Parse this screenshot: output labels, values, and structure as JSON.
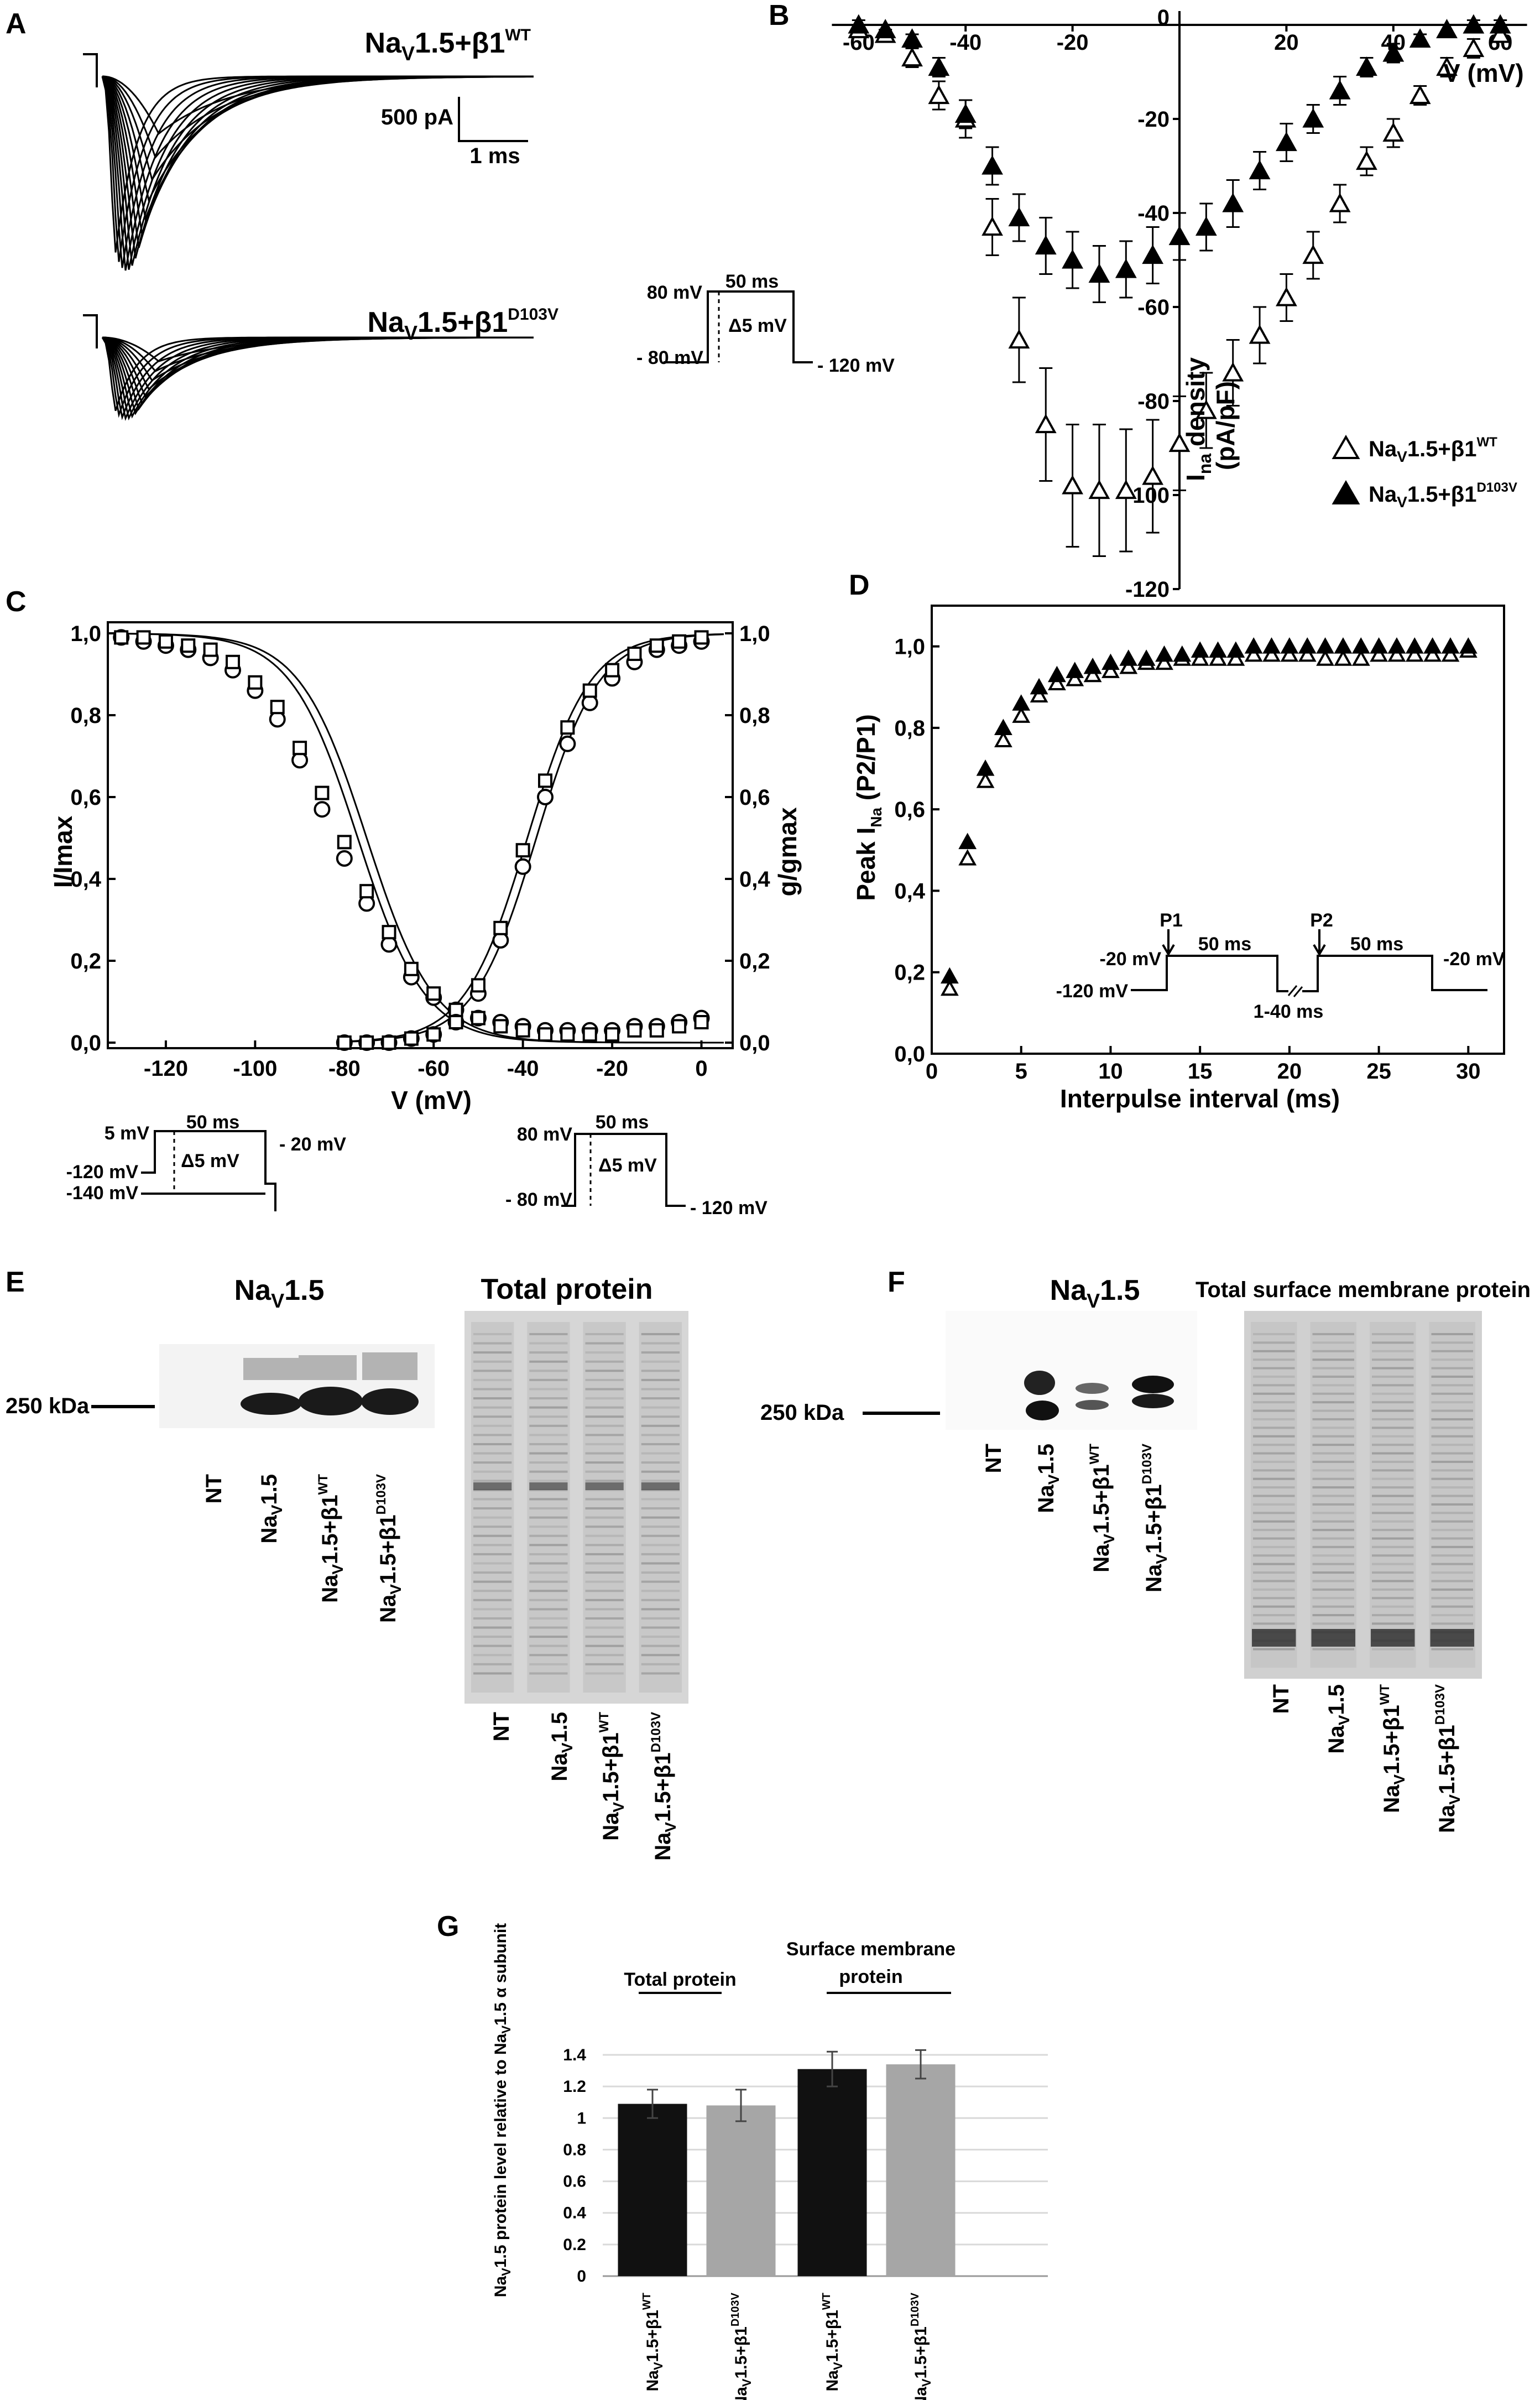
{
  "panels": {
    "A": {
      "label": "A",
      "trace_wt": {
        "base": "Na",
        "sub": "V",
        "mid": "1.5+β1",
        "sup": "WT"
      },
      "trace_mut": {
        "base": "Na",
        "sub": "V",
        "mid": "1.5+β1",
        "sup": "D103V"
      },
      "scale_current": "500 pA",
      "scale_time": "1 ms",
      "protocol": {
        "hold": "- 80 mV",
        "step": "80 mV",
        "end": "- 120 mV",
        "duration": "50 ms",
        "increment": "Δ5 mV"
      }
    },
    "B": {
      "label": "B"
    },
    "C": {
      "label": "C",
      "protocol_left": {
        "top": "5 mV",
        "v1": "-120 mV",
        "v2": "-140 mV",
        "right": "- 20 mV",
        "duration": "50 ms",
        "increment": "Δ5 mV"
      },
      "protocol_right": {
        "top": "80 mV",
        "hold": "- 80 mV",
        "end": "- 120 mV",
        "duration": "50 ms",
        "increment": "Δ5 mV"
      }
    },
    "D": {
      "label": "D",
      "protocol": {
        "p1": "P1",
        "p2": "P2",
        "v_left": "-20 mV",
        "hold": "-120 mV",
        "d1": "50 ms",
        "d2": "50 ms",
        "v_right": "-20 mV",
        "interval": "1-40 ms"
      }
    },
    "E": {
      "label": "E",
      "blot_title": {
        "base": "Na",
        "sub": "V",
        "rest": "1.5"
      },
      "total_title": "Total protein",
      "marker": "250 kDa",
      "lanes": [
        {
          "text": "NT"
        },
        {
          "base": "Na",
          "sub": "V",
          "rest": "1.5"
        },
        {
          "base": "Na",
          "sub": "V",
          "rest": "1.5+β1",
          "sup": "WT"
        },
        {
          "base": "Na",
          "sub": "V",
          "rest": "1.5+β1",
          "sup": "D103V"
        }
      ]
    },
    "F": {
      "label": "F",
      "blot_title": {
        "base": "Na",
        "sub": "V",
        "rest": "1.5"
      },
      "total_title": "Total surface membrane protein",
      "marker": "250 kDa"
    },
    "G": {
      "label": "G",
      "group1": "Total protein",
      "group2_line1": "Surface membrane",
      "group2_line2": "protein"
    }
  },
  "colors": {
    "wt_marker": "#ffffff",
    "mutant_marker": "#000000",
    "bar_dark": "#111111",
    "bar_light": "#a6a6a6"
  },
  "chart_data": [
    {
      "id": "B",
      "type": "scatter",
      "xlabel": "V (mV)",
      "ylabel": {
        "base": "I",
        "sub": "na",
        "rest": " density",
        "line2": "(pA/pF)"
      },
      "xlim": [
        -65,
        65
      ],
      "ylim": [
        -120,
        0
      ],
      "xticks": [
        -60,
        -40,
        -20,
        0,
        20,
        40,
        60
      ],
      "yticks": [
        0,
        -20,
        -40,
        -60,
        -80,
        -100,
        -120
      ],
      "legend_position": "bottom-right",
      "x": [
        -60,
        -55,
        -50,
        -45,
        -40,
        -35,
        -30,
        -25,
        -20,
        -15,
        -10,
        -5,
        0,
        5,
        10,
        15,
        20,
        25,
        30,
        35,
        40,
        45,
        50,
        55,
        60
      ],
      "series": [
        {
          "legend": {
            "base": "Na",
            "sub": "V",
            "rest": "1.5+β1",
            "sup": "WT"
          },
          "marker": "open-triangle",
          "y": [
            -1,
            -2,
            -7,
            -15,
            -20,
            -43,
            -67,
            -85,
            -98,
            -99,
            -99,
            -96,
            -89,
            -82,
            -74,
            -66,
            -58,
            -49,
            -38,
            -29,
            -23,
            -15,
            -9,
            -5,
            -2
          ],
          "err": [
            1,
            1,
            2,
            3,
            4,
            6,
            9,
            12,
            13,
            14,
            13,
            12,
            10,
            8,
            7,
            6,
            5,
            5,
            4,
            3,
            3,
            2,
            2,
            2,
            1
          ]
        },
        {
          "legend": {
            "base": "Na",
            "sub": "V",
            "rest": "1.5+β1",
            "sup": "D103V"
          },
          "marker": "filled-triangle",
          "y": [
            0,
            -1,
            -3,
            -9,
            -19,
            -30,
            -41,
            -47,
            -50,
            -53,
            -52,
            -49,
            -45,
            -43,
            -38,
            -31,
            -25,
            -20,
            -14,
            -9,
            -6,
            -3,
            -1,
            0,
            0
          ],
          "err": [
            1,
            1,
            1,
            2,
            3,
            4,
            5,
            6,
            6,
            6,
            6,
            6,
            5,
            5,
            5,
            4,
            4,
            3,
            3,
            2,
            2,
            1,
            1,
            1,
            1
          ]
        }
      ]
    },
    {
      "id": "C",
      "type": "scatter",
      "xlabel": "V (mV)",
      "ylabel_left": "I/Imax",
      "ylabel_right": "g/gmax",
      "xlim": [
        -133,
        7
      ],
      "ylim": [
        0,
        1
      ],
      "xticks": [
        -120,
        -100,
        -80,
        -60,
        -40,
        -20,
        0
      ],
      "yticks": [
        "0,0",
        "0,2",
        "0,4",
        "0,6",
        "0,8",
        "1,0"
      ],
      "ytick_values": [
        0,
        0.2,
        0.4,
        0.6,
        0.8,
        1.0
      ],
      "series": [
        {
          "name": "inactivation-circle",
          "marker": "circle",
          "x": [
            -130,
            -125,
            -120,
            -115,
            -110,
            -105,
            -100,
            -95,
            -90,
            -85,
            -80,
            -75,
            -70,
            -65,
            -60,
            -55,
            -50,
            -45,
            -40,
            -35,
            -30,
            -25,
            -20,
            -15,
            -10,
            -5,
            0
          ],
          "y": [
            0.99,
            0.98,
            0.97,
            0.96,
            0.94,
            0.91,
            0.86,
            0.79,
            0.69,
            0.57,
            0.45,
            0.34,
            0.24,
            0.16,
            0.11,
            0.08,
            0.06,
            0.05,
            0.04,
            0.03,
            0.03,
            0.03,
            0.03,
            0.04,
            0.04,
            0.05,
            0.06
          ]
        },
        {
          "name": "inactivation-square",
          "marker": "square",
          "x": [
            -130,
            -125,
            -120,
            -115,
            -110,
            -105,
            -100,
            -95,
            -90,
            -85,
            -80,
            -75,
            -70,
            -65,
            -60,
            -55,
            -50,
            -45,
            -40,
            -35,
            -30,
            -25,
            -20,
            -15,
            -10,
            -5,
            0
          ],
          "y": [
            0.99,
            0.99,
            0.98,
            0.97,
            0.96,
            0.93,
            0.88,
            0.82,
            0.72,
            0.61,
            0.49,
            0.37,
            0.27,
            0.18,
            0.12,
            0.08,
            0.06,
            0.04,
            0.03,
            0.02,
            0.02,
            0.02,
            0.02,
            0.03,
            0.03,
            0.04,
            0.05
          ]
        },
        {
          "name": "activation-circle",
          "marker": "circle",
          "x": [
            -80,
            -75,
            -70,
            -65,
            -60,
            -55,
            -50,
            -45,
            -40,
            -35,
            -30,
            -25,
            -20,
            -15,
            -10,
            -5,
            0
          ],
          "y": [
            0.0,
            0.0,
            0.0,
            0.01,
            0.02,
            0.05,
            0.12,
            0.25,
            0.43,
            0.6,
            0.73,
            0.83,
            0.89,
            0.93,
            0.96,
            0.97,
            0.98
          ]
        },
        {
          "name": "activation-square",
          "marker": "square",
          "x": [
            -80,
            -75,
            -70,
            -65,
            -60,
            -55,
            -50,
            -45,
            -40,
            -35,
            -30,
            -25,
            -20,
            -15,
            -10,
            -5,
            0
          ],
          "y": [
            0.0,
            0.0,
            0.0,
            0.01,
            0.02,
            0.05,
            0.14,
            0.28,
            0.47,
            0.64,
            0.77,
            0.86,
            0.91,
            0.95,
            0.97,
            0.98,
            0.99
          ]
        }
      ]
    },
    {
      "id": "D",
      "type": "scatter",
      "xlabel": "Interpulse interval (ms)",
      "ylabel": {
        "base": "Peak I",
        "sub": "Na",
        "rest": " (P2/P1)"
      },
      "xlim": [
        0,
        32
      ],
      "ylim": [
        0,
        1.1
      ],
      "xticks": [
        0,
        5,
        10,
        15,
        20,
        25,
        30
      ],
      "yticks": [
        "0,0",
        "0,2",
        "0,4",
        "0,6",
        "0,8",
        "1,0"
      ],
      "ytick_values": [
        0,
        0.2,
        0.4,
        0.6,
        0.8,
        1.0
      ],
      "x": [
        1,
        2,
        3,
        4,
        5,
        6,
        7,
        8,
        9,
        10,
        11,
        12,
        13,
        14,
        15,
        16,
        17,
        18,
        19,
        20,
        21,
        22,
        23,
        24,
        25,
        26,
        27,
        28,
        29,
        30
      ],
      "series": [
        {
          "name": "wt",
          "marker": "open-triangle",
          "y": [
            0.16,
            0.48,
            0.67,
            0.77,
            0.83,
            0.88,
            0.91,
            0.92,
            0.93,
            0.94,
            0.95,
            0.96,
            0.96,
            0.97,
            0.97,
            0.97,
            0.97,
            0.98,
            0.98,
            0.98,
            0.98,
            0.97,
            0.97,
            0.97,
            0.98,
            0.98,
            0.98,
            0.98,
            0.98,
            0.99
          ]
        },
        {
          "name": "mutant",
          "marker": "filled-triangle",
          "y": [
            0.19,
            0.52,
            0.7,
            0.8,
            0.86,
            0.9,
            0.93,
            0.94,
            0.95,
            0.96,
            0.97,
            0.97,
            0.98,
            0.98,
            0.99,
            0.99,
            0.99,
            1.0,
            1.0,
            1.0,
            1.0,
            1.0,
            1.0,
            1.0,
            1.0,
            1.0,
            1.0,
            1.0,
            1.0,
            1.0
          ]
        }
      ]
    },
    {
      "id": "G",
      "type": "bar",
      "ylabel": "Na_V1.5 protein level relative to Na_V1.5 α subunit",
      "ylim": [
        0,
        1.4
      ],
      "yticks": [
        "0",
        "0.2",
        "0.4",
        "0.6",
        "0.8",
        "1",
        "1.2",
        "1.4"
      ],
      "ytick_values": [
        0,
        0.2,
        0.4,
        0.6,
        0.8,
        1.0,
        1.2,
        1.4
      ],
      "categories": [
        {
          "base": "Na",
          "sub": "V",
          "rest": "1.5+β1",
          "sup": "WT"
        },
        {
          "base": "Na",
          "sub": "V",
          "rest": "1.5+β1",
          "sup": "D103V"
        },
        {
          "base": "Na",
          "sub": "V",
          "rest": "1.5+β1",
          "sup": "WT"
        },
        {
          "base": "Na",
          "sub": "V",
          "rest": "1.5+β1",
          "sup": "D103V"
        }
      ],
      "values": [
        1.09,
        1.08,
        1.31,
        1.34
      ],
      "err": [
        0.09,
        0.1,
        0.11,
        0.09
      ],
      "colors": [
        "#111111",
        "#a6a6a6",
        "#111111",
        "#a6a6a6"
      ]
    }
  ]
}
